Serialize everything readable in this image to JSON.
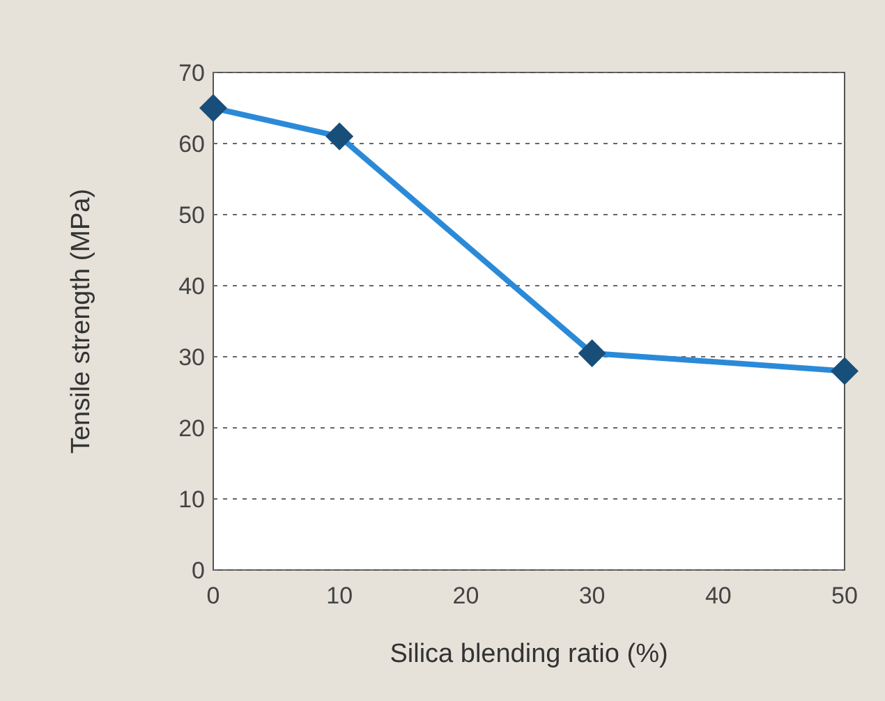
{
  "chart_data": {
    "type": "line",
    "xlabel": "Silica blending ratio (%)",
    "ylabel": "Tensile strength (MPa)",
    "x": [
      0,
      10,
      30,
      50
    ],
    "series": [
      {
        "color": "#2b8ad8",
        "values": [
          65,
          61,
          30.5,
          28
        ]
      }
    ],
    "xlim": [
      0,
      50
    ],
    "xticks": [
      0,
      10,
      20,
      30,
      40,
      50
    ],
    "ylim": [
      0,
      70
    ],
    "yticks": [
      0,
      10,
      20,
      30,
      40,
      50,
      60,
      70
    ],
    "grid": "y",
    "marker": "diamond",
    "line_style": "solid"
  }
}
